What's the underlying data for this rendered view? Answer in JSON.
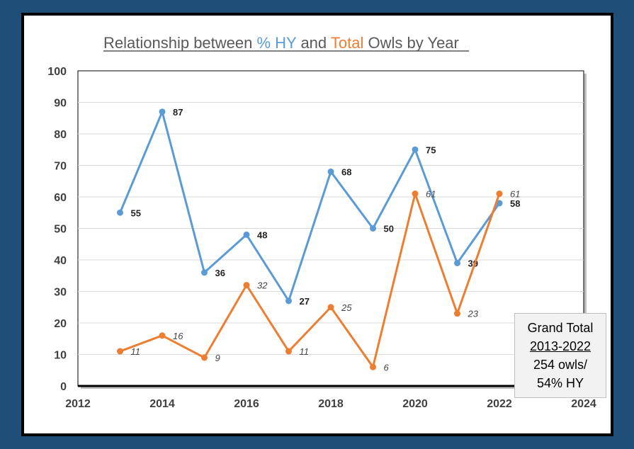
{
  "title_parts": {
    "p1": "Relationship between ",
    "p2": "% HY",
    "p3": " and ",
    "p4": "Total ",
    "p5": "Owls by Year"
  },
  "grand_total": {
    "line1": "Grand Total",
    "line2": "2013-2022",
    "line3": "254 owls/",
    "line4": "54% HY"
  },
  "colors": {
    "hy": "#5b9bd5",
    "total": "#ed7d31",
    "title_text": "#595959"
  },
  "chart_data": {
    "type": "line",
    "title": "Relationship between % HY and Total Owls by Year",
    "x": [
      2013,
      2014,
      2015,
      2016,
      2017,
      2018,
      2019,
      2020,
      2021,
      2022
    ],
    "xlim": [
      2012,
      2024
    ],
    "ylim": [
      0,
      100
    ],
    "x_ticks": [
      2012,
      2014,
      2016,
      2018,
      2020,
      2022,
      2024
    ],
    "y_ticks": [
      0,
      10,
      20,
      30,
      40,
      50,
      60,
      70,
      80,
      90,
      100
    ],
    "grid": true,
    "series": [
      {
        "name": "% HY",
        "color": "#5b9bd5",
        "values": [
          55,
          87,
          36,
          48,
          27,
          68,
          50,
          75,
          39,
          58
        ],
        "label_style": "bold"
      },
      {
        "name": "Total",
        "color": "#ed7d31",
        "values": [
          11,
          16,
          9,
          32,
          11,
          25,
          6,
          61,
          23,
          61
        ],
        "label_style": "italic"
      }
    ]
  }
}
